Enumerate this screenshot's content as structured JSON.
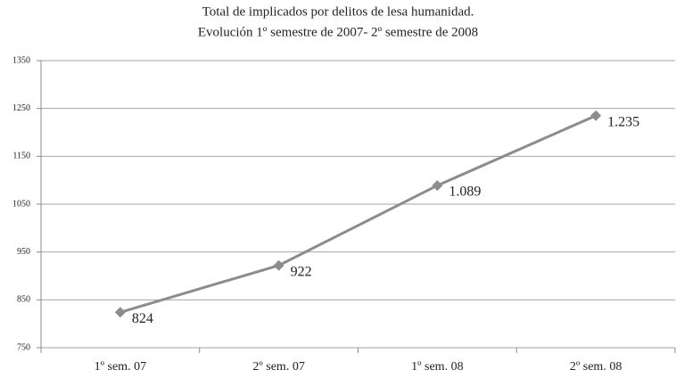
{
  "chart_data": {
    "type": "line",
    "title": [
      "Total de implicados por delitos de lesa humanidad.",
      "Evolución 1º semestre de 2007- 2º semestre de 2008"
    ],
    "categories": [
      "1º sem. 07",
      "2º sem. 07",
      "1º sem. 08",
      "2º sem. 08"
    ],
    "series": [
      {
        "name": "Total de implicados",
        "color": "#8c8c8c",
        "values": [
          824,
          922,
          1089,
          1235
        ],
        "value_labels": [
          "824",
          "922",
          "1.089",
          "1.235"
        ]
      }
    ],
    "ylim": [
      750,
      1350
    ],
    "yticks": [
      750,
      850,
      950,
      1050,
      1150,
      1250,
      1350
    ],
    "grid": true
  }
}
